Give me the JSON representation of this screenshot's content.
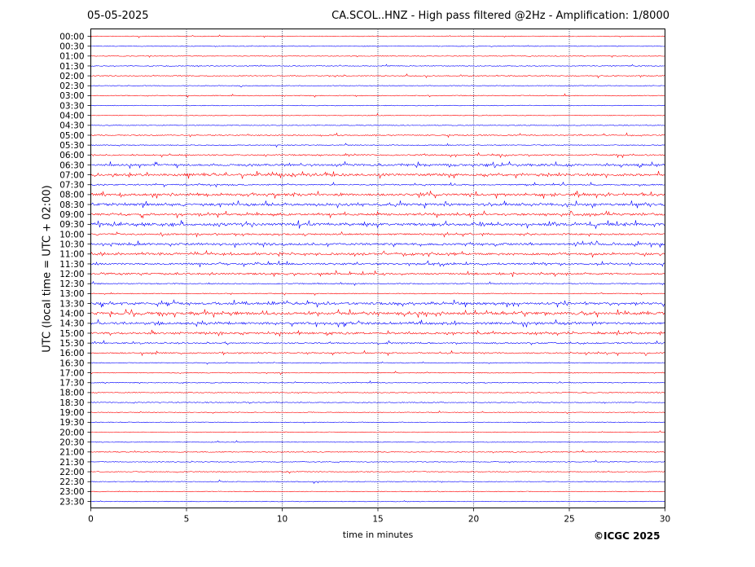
{
  "header": {
    "date": "05-05-2025",
    "title": "CA.SCOL..HNZ - High pass filtered @2Hz - Amplification: 1/8000"
  },
  "footer": {
    "credit": "©ICGC 2025"
  },
  "chart_data": {
    "type": "line",
    "title": "CA.SCOL..HNZ - High pass filtered @2Hz - Amplification: 1/8000",
    "xlabel": "time in minutes",
    "ylabel": "UTC (local time = UTC + 02:00)",
    "xlim": [
      0,
      30
    ],
    "xticks": [
      0,
      5,
      10,
      15,
      20,
      25,
      30
    ],
    "vertical_grid": [
      5,
      10,
      15,
      20,
      25
    ],
    "rows": [
      "00:00",
      "00:30",
      "01:00",
      "01:30",
      "02:00",
      "02:30",
      "03:00",
      "03:30",
      "04:00",
      "04:30",
      "05:00",
      "05:30",
      "06:00",
      "06:30",
      "07:00",
      "07:30",
      "08:00",
      "08:30",
      "09:00",
      "09:30",
      "10:00",
      "10:30",
      "11:00",
      "11:30",
      "12:00",
      "12:30",
      "13:00",
      "13:30",
      "14:00",
      "14:30",
      "15:00",
      "15:30",
      "16:00",
      "16:30",
      "17:00",
      "17:30",
      "18:00",
      "18:30",
      "19:00",
      "19:30",
      "20:00",
      "20:30",
      "21:00",
      "21:30",
      "22:00",
      "22:30",
      "23:00",
      "23:30"
    ],
    "row_colors": [
      "#ff0000",
      "#0000ff"
    ],
    "activity": [
      0.05,
      0.05,
      0.05,
      0.1,
      0.15,
      0.05,
      0.1,
      0.05,
      0.05,
      0.05,
      0.2,
      0.1,
      0.3,
      0.6,
      0.7,
      0.3,
      0.7,
      0.7,
      0.6,
      0.8,
      0.4,
      0.6,
      0.6,
      0.5,
      0.5,
      0.2,
      0.1,
      0.7,
      0.8,
      0.7,
      0.6,
      0.3,
      0.3,
      0.1,
      0.1,
      0.1,
      0.1,
      0.1,
      0.05,
      0.05,
      0.05,
      0.05,
      0.15,
      0.05,
      0.1,
      0.05,
      0.05,
      0.05
    ]
  }
}
